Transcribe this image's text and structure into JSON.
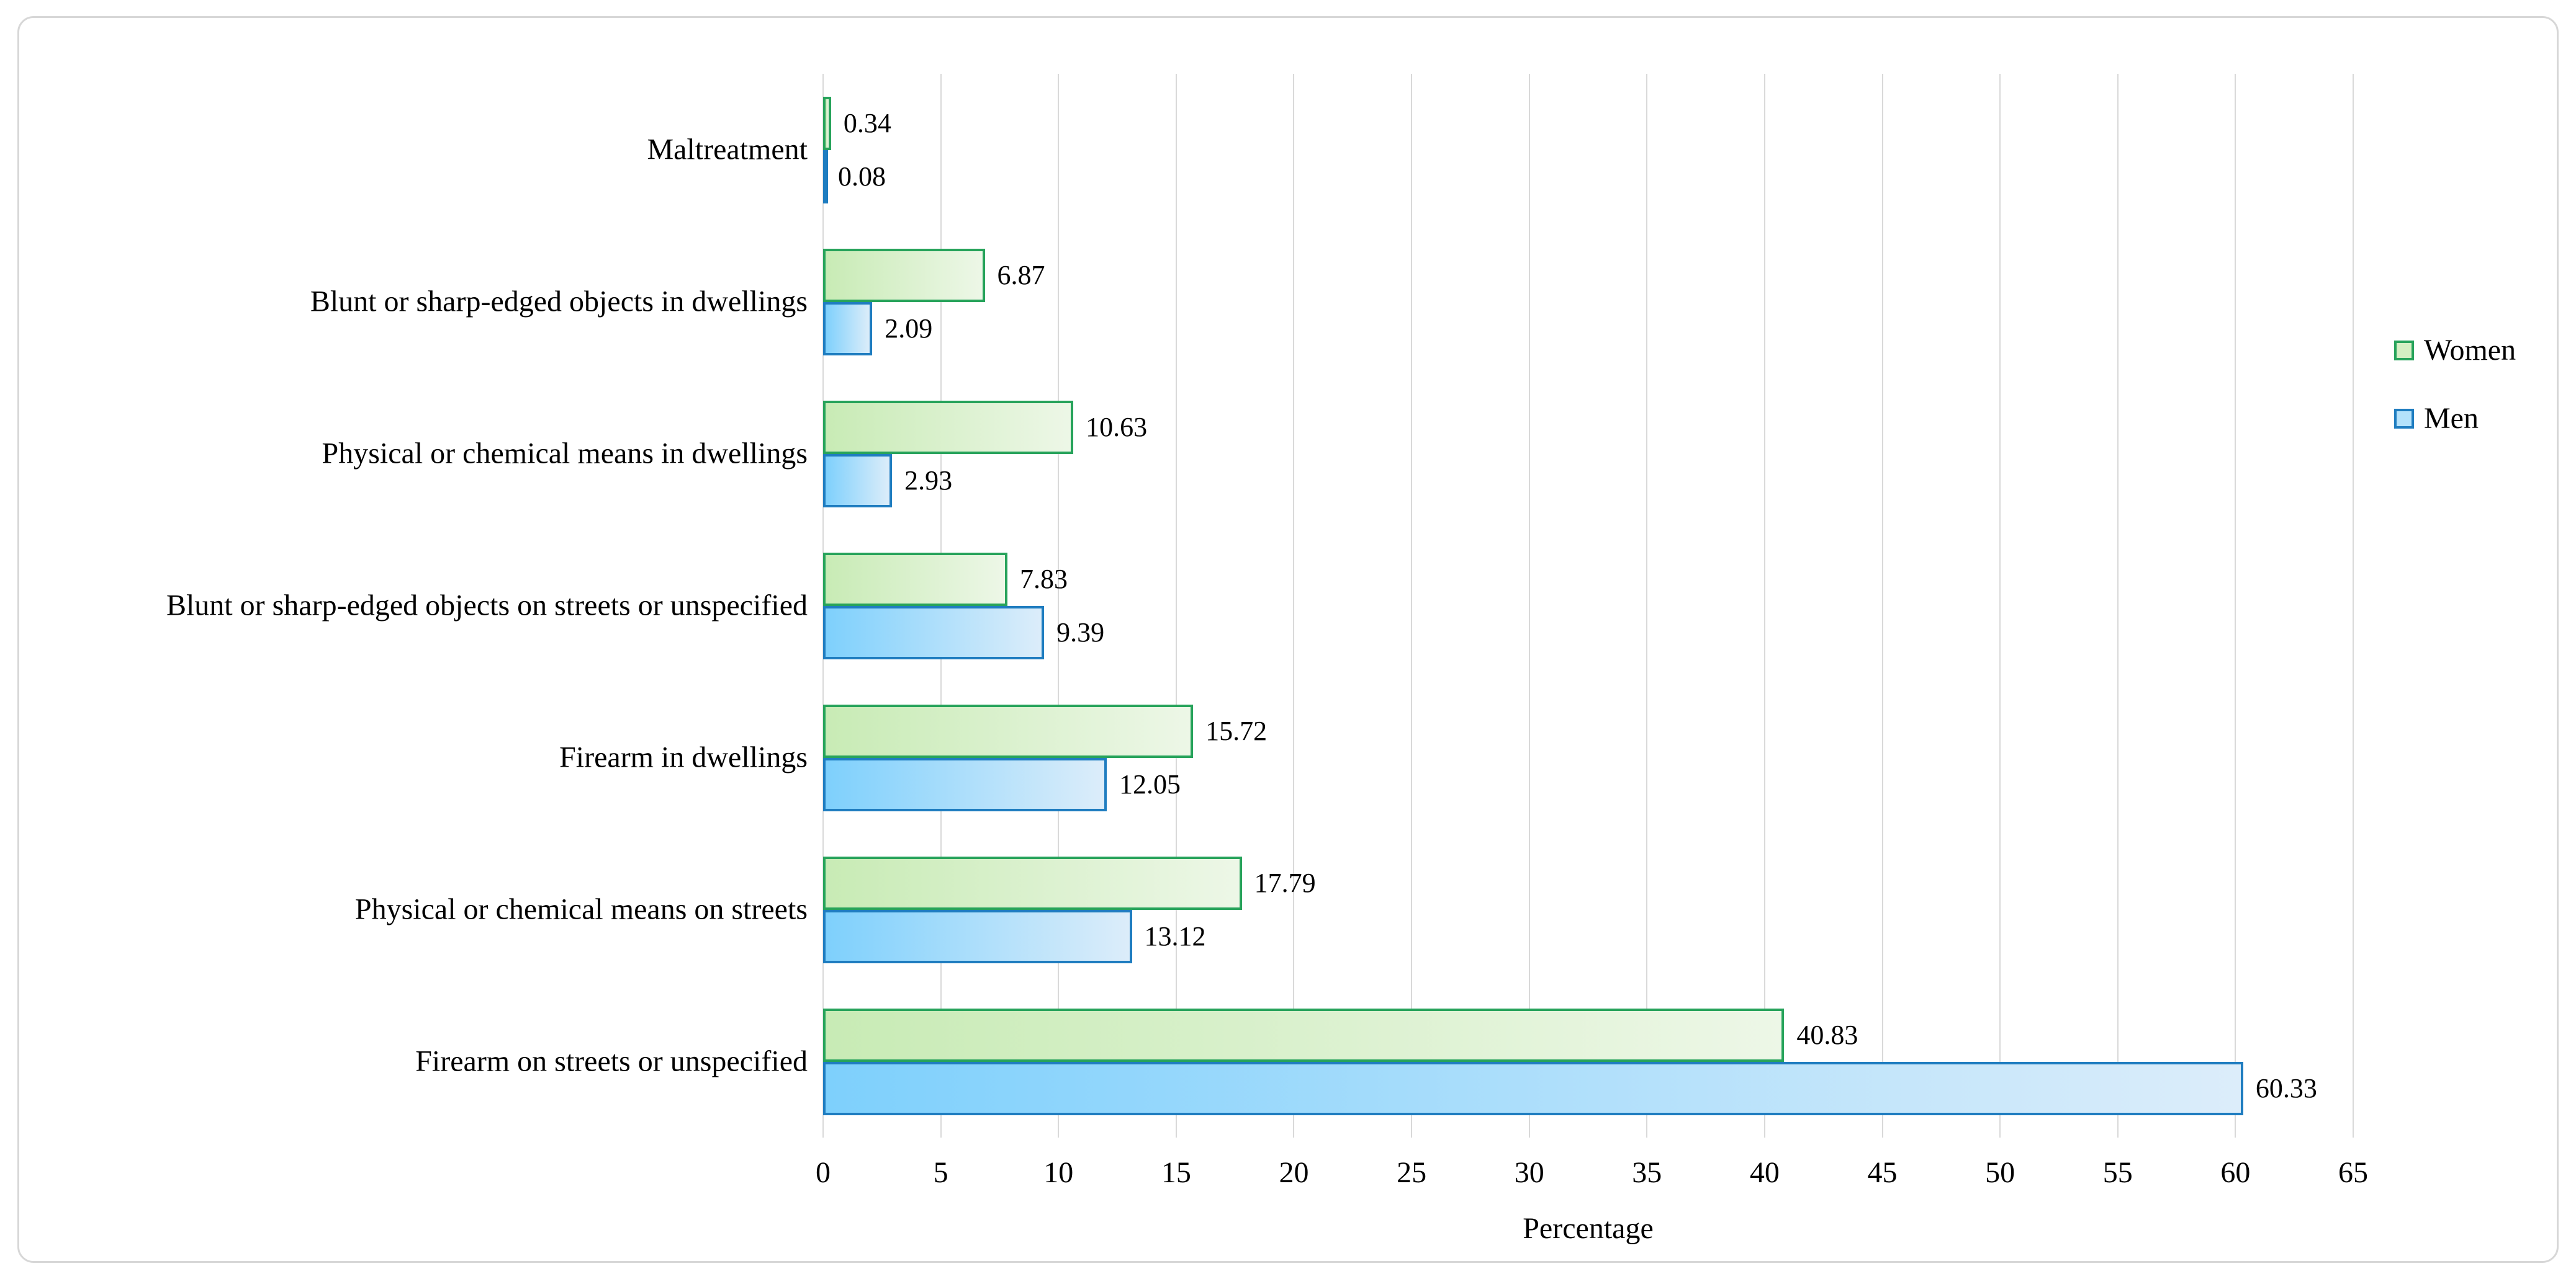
{
  "chart_data": {
    "type": "bar",
    "orientation": "horizontal",
    "title": "",
    "xlabel": "Percentage",
    "xlim": [
      0,
      65
    ],
    "x_ticks": [
      0,
      5,
      10,
      15,
      20,
      25,
      30,
      35,
      40,
      45,
      50,
      55,
      60,
      65
    ],
    "grid": "vertical gridlines on",
    "legend_position": "right",
    "value_labels": true,
    "value_label_decimals": 2,
    "categories": [
      "Maltreatment",
      "Blunt or sharp-edged objects in dwellings",
      "Physical or chemical means in dwellings",
      "Blunt or sharp-edged objects on streets or unspecified",
      "Firearm in dwellings",
      "Physical or chemical means on streets",
      "Firearm on streets or unspecified"
    ],
    "series": [
      {
        "name": "Women",
        "values": [
          0.34,
          6.87,
          10.63,
          7.83,
          15.72,
          17.79,
          40.83
        ],
        "bar_border": "#27a35b",
        "bar_fill_gradient": [
          "#c8ebb5",
          "#edf7e7"
        ],
        "legend_fill": "#d5efc3"
      },
      {
        "name": "Men",
        "values": [
          0.08,
          2.09,
          2.93,
          9.39,
          12.05,
          13.12,
          60.33
        ],
        "bar_border": "#1f7dc0",
        "bar_fill_gradient": [
          "#7ed0fc",
          "#dcedfa"
        ],
        "legend_fill": "#b4e2fb"
      }
    ]
  },
  "colors": {
    "background": "#ffffff",
    "frame_border": "#d7d7d7",
    "gridline": "#d9d9d9",
    "text": "#000000"
  }
}
